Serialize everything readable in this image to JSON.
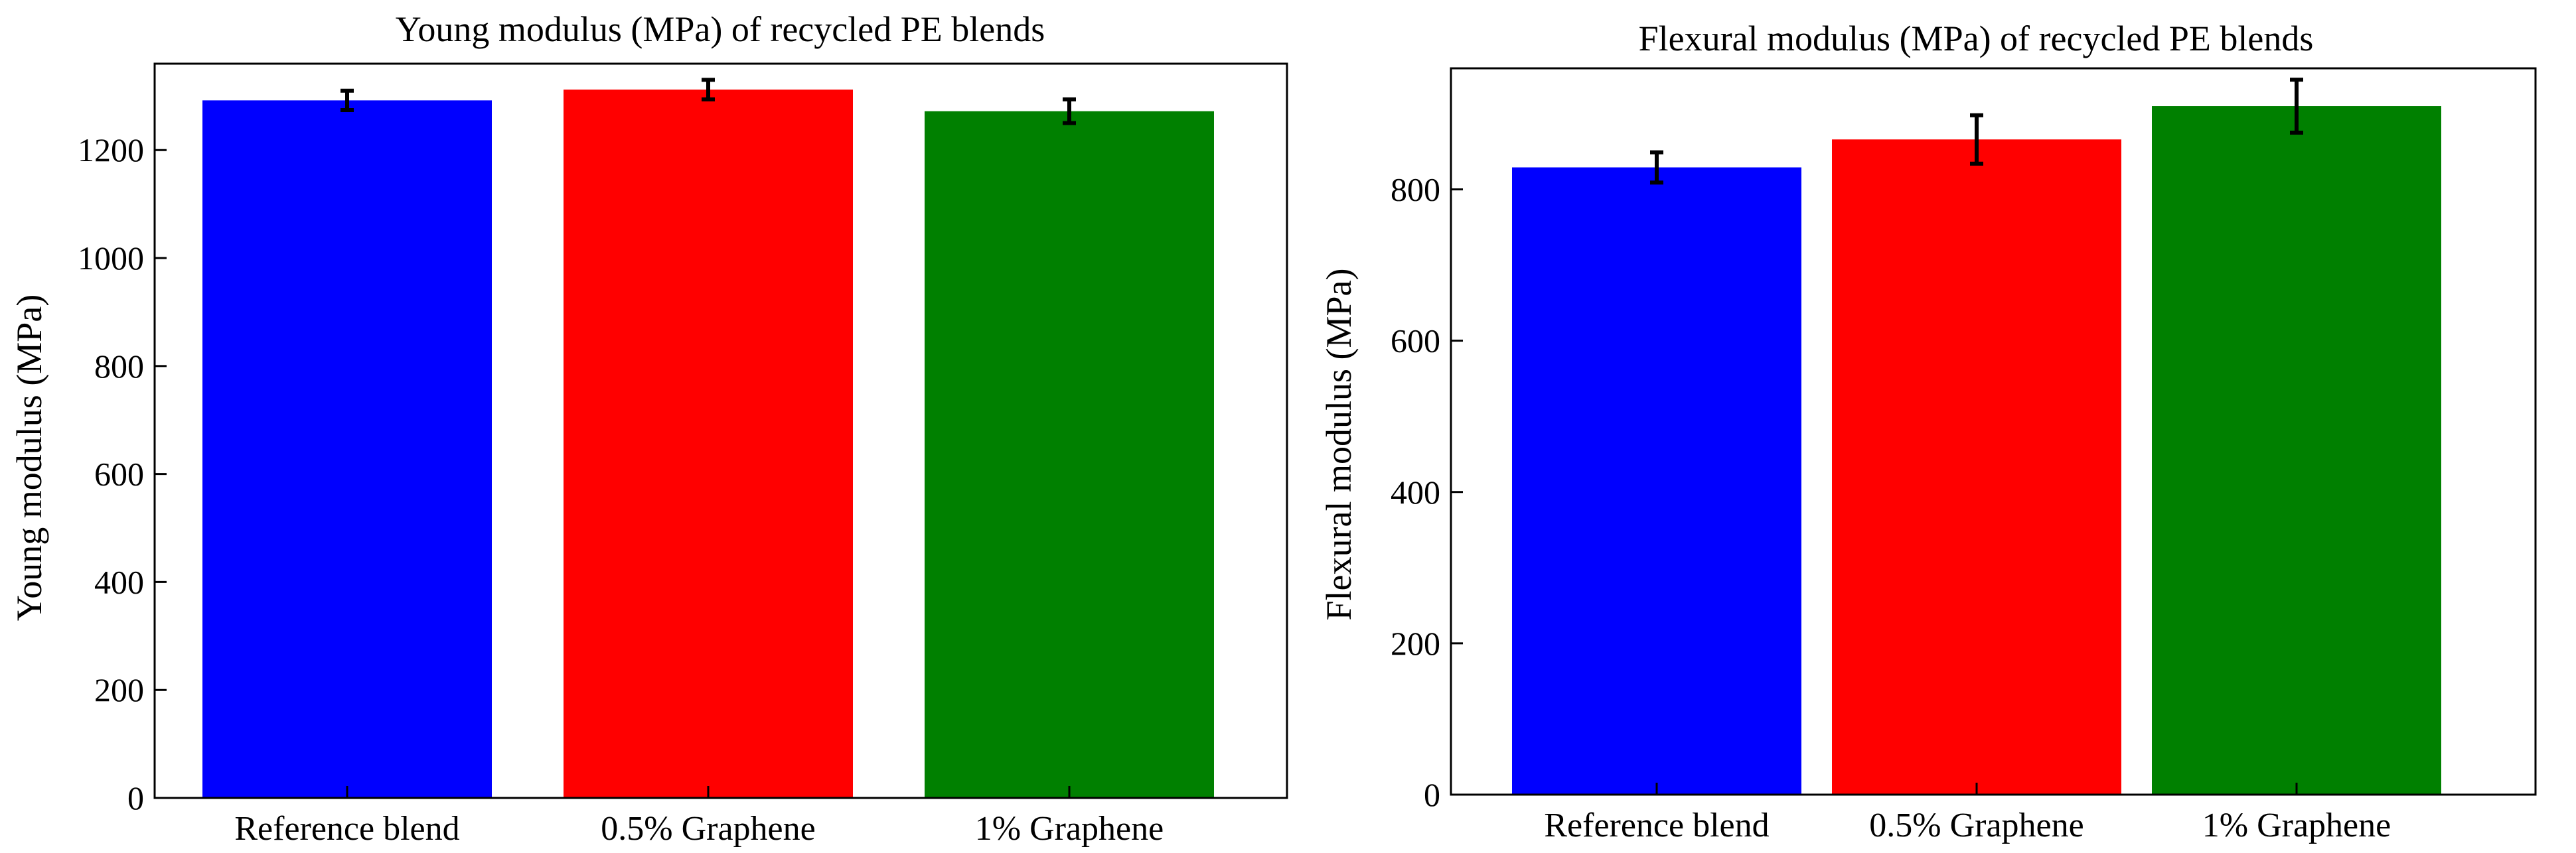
{
  "chart_data": [
    {
      "type": "bar",
      "title": "Young modulus (MPa) of recycled PE blends",
      "xlabel": "",
      "ylabel": "Young modulus (MPa)",
      "categories": [
        "Reference blend",
        "0.5% Graphene",
        "1% Graphene"
      ],
      "values": [
        1292,
        1312,
        1272
      ],
      "errors": [
        18,
        18,
        22
      ],
      "colors": [
        "#0000ff",
        "#ff0000",
        "#008000"
      ],
      "ylim": [
        0,
        1360
      ],
      "yticks": [
        0,
        200,
        400,
        600,
        800,
        1000,
        1200
      ],
      "grid": false
    },
    {
      "type": "bar",
      "title": "Flexural modulus (MPa) of recycled PE blends",
      "xlabel": "",
      "ylabel": "Flexural modulus (MPa)",
      "categories": [
        "Reference blend",
        "0.5% Graphene",
        "1% Graphene"
      ],
      "values": [
        829,
        866,
        910
      ],
      "errors": [
        20,
        32,
        35
      ],
      "colors": [
        "#0000ff",
        "#ff0000",
        "#008000"
      ],
      "ylim": [
        0,
        960
      ],
      "yticks": [
        0,
        200,
        400,
        600,
        800
      ],
      "grid": false
    }
  ]
}
